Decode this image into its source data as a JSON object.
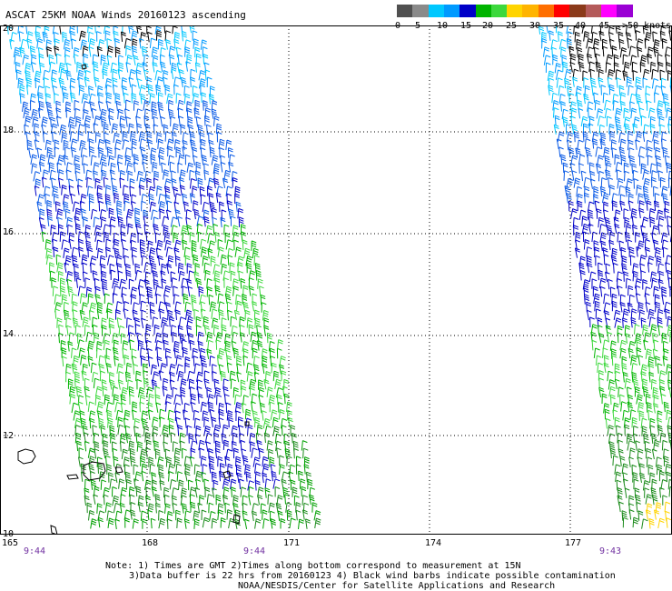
{
  "title": "ASCAT 25KM NOAA Winds 20160123 ascending",
  "legend": {
    "labels": [
      "0",
      "5",
      "10",
      "15",
      "20",
      "25",
      "30",
      "35",
      "40",
      "45",
      ">50 knots"
    ],
    "colors": [
      "#505050",
      "#8a8a8a",
      "#00c8ff",
      "#009aff",
      "#0000c8",
      "#00b400",
      "#3cd83c",
      "#ffd400",
      "#ffb400",
      "#ff6e00",
      "#ff0000",
      "#8b3a1a",
      "#b45a5a",
      "#ff00ff",
      "#9a00d4"
    ]
  },
  "axes": {
    "lat_labels": [
      "20",
      "18",
      "16",
      "14",
      "12",
      "10"
    ],
    "lon_labels": [
      "165",
      "168",
      "171",
      "174",
      "177"
    ]
  },
  "times": [
    "9:44",
    "9:44",
    "9:43"
  ],
  "notes": [
    "Note: 1) Times are GMT 2)Times along bottom correspond to measurement at 15N",
    "3)Data buffer is 22 hrs from 20160123 4) Black wind barbs indicate possible contamination",
    "NOAA/NESDIS/Center for Satellite Applications and Research"
  ]
}
